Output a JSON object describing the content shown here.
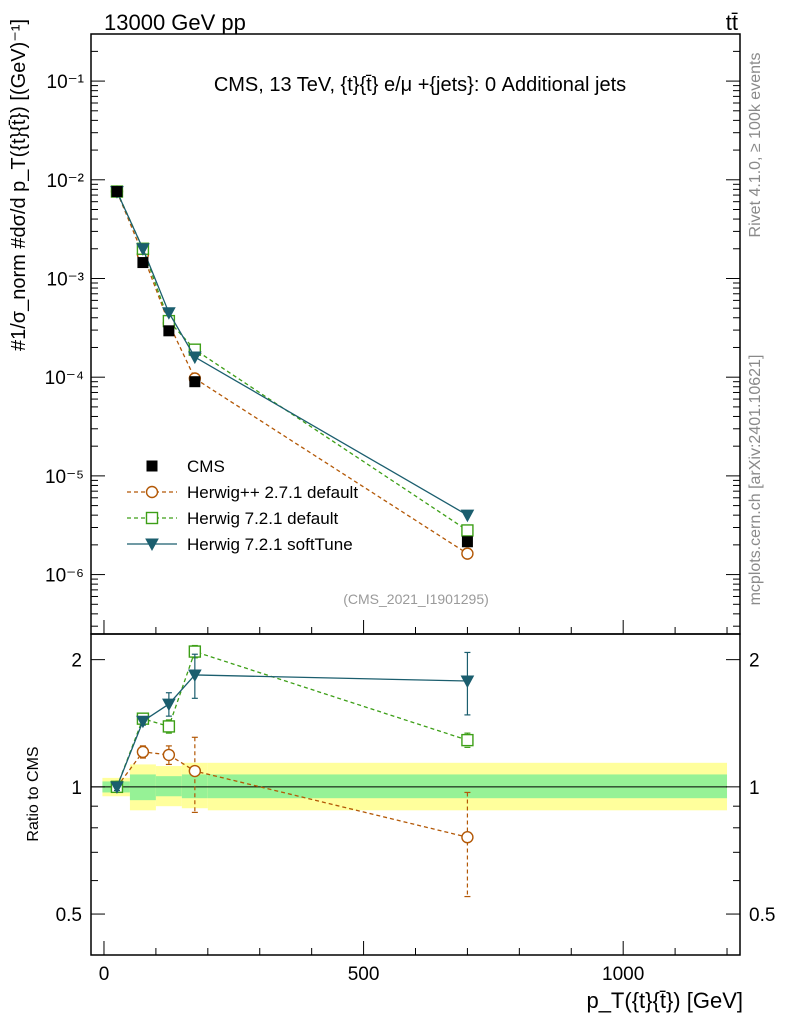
{
  "header": {
    "left": "13000 GeV pp",
    "right": "tt̄"
  },
  "side": {
    "rivet": "Rivet 4.1.0, ≥ 100k events",
    "mcplots": "mcplots.cern.ch [arXiv:2401.10621]"
  },
  "chart_data": {
    "type": "line",
    "title": "CMS, 13 TeV, {t}{t̄} e/μ +{jets}: 0 Additional jets",
    "analysis": "(CMS_2021_I1901295)",
    "xlabel": "p_T({t}{t̄}) [GeV]",
    "ylabel": "#1/σ_norm #dσ/d p_T({t}{t̄}) [(GeV)⁻¹]",
    "ratio_ylabel": "Ratio to CMS",
    "xlim": [
      -25,
      1225
    ],
    "ylim": [
      2.5e-07,
      0.3
    ],
    "ratio_ylim": [
      0.4,
      2.3
    ],
    "x_ticks": [
      0,
      500,
      1000
    ],
    "x_tick_labels": [
      "0",
      "500",
      "1000"
    ],
    "y_ticks": [
      1e-06,
      1e-05,
      0.0001,
      0.001,
      0.01,
      0.1
    ],
    "y_tick_labels": [
      "10⁻⁶",
      "10⁻⁵",
      "10⁻⁴",
      "10⁻³",
      "10⁻²",
      "10⁻¹"
    ],
    "ratio_ticks": [
      0.5,
      1,
      2
    ],
    "ratio_tick_labels": [
      "0.5",
      "1",
      "2"
    ],
    "x": [
      25,
      75,
      125,
      175,
      700
    ],
    "bin_edges": [
      0,
      50,
      100,
      150,
      200,
      1200
    ],
    "data": {
      "name": "CMS",
      "values": [
        0.0076,
        0.00145,
        0.000295,
        9e-05,
        2.15e-06
      ]
    },
    "band_inner": [
      [
        0.97,
        1.03
      ],
      [
        0.93,
        1.07
      ],
      [
        0.95,
        1.06
      ],
      [
        0.94,
        1.07
      ],
      [
        0.94,
        1.07
      ]
    ],
    "band_outer": [
      [
        0.95,
        1.05
      ],
      [
        0.88,
        1.13
      ],
      [
        0.9,
        1.12
      ],
      [
        0.89,
        1.14
      ],
      [
        0.88,
        1.14
      ]
    ],
    "series": [
      {
        "name": "Herwig++ 2.7.1 default",
        "color": "#b35806",
        "dash": true,
        "marker": "circle",
        "values": [
          0.0076,
          0.00175,
          0.00035,
          9.7e-05,
          1.63e-06
        ],
        "ratio": [
          1.0,
          1.21,
          1.19,
          1.09,
          0.76
        ],
        "ratio_err": [
          0.02,
          0.04,
          0.06,
          0.22,
          0.21
        ]
      },
      {
        "name": "Herwig 7.2.1 default",
        "color": "#3d9f17",
        "dash": true,
        "marker": "square",
        "values": [
          0.0076,
          0.002,
          0.00037,
          0.00019,
          2.8e-06
        ],
        "ratio": [
          1.0,
          1.45,
          1.39,
          2.09,
          1.29
        ],
        "ratio_err": [
          0.02,
          0.04,
          0.05,
          0.07,
          0.05
        ]
      },
      {
        "name": "Herwig 7.2.1 softTune",
        "color": "#1b5e6e",
        "dash": false,
        "marker": "triangle",
        "values": [
          0.0076,
          0.002,
          0.00045,
          0.00016,
          4e-06
        ],
        "ratio": [
          1.0,
          1.43,
          1.57,
          1.84,
          1.78
        ],
        "ratio_err": [
          0.02,
          0.03,
          0.1,
          0.22,
          0.3
        ]
      }
    ]
  }
}
